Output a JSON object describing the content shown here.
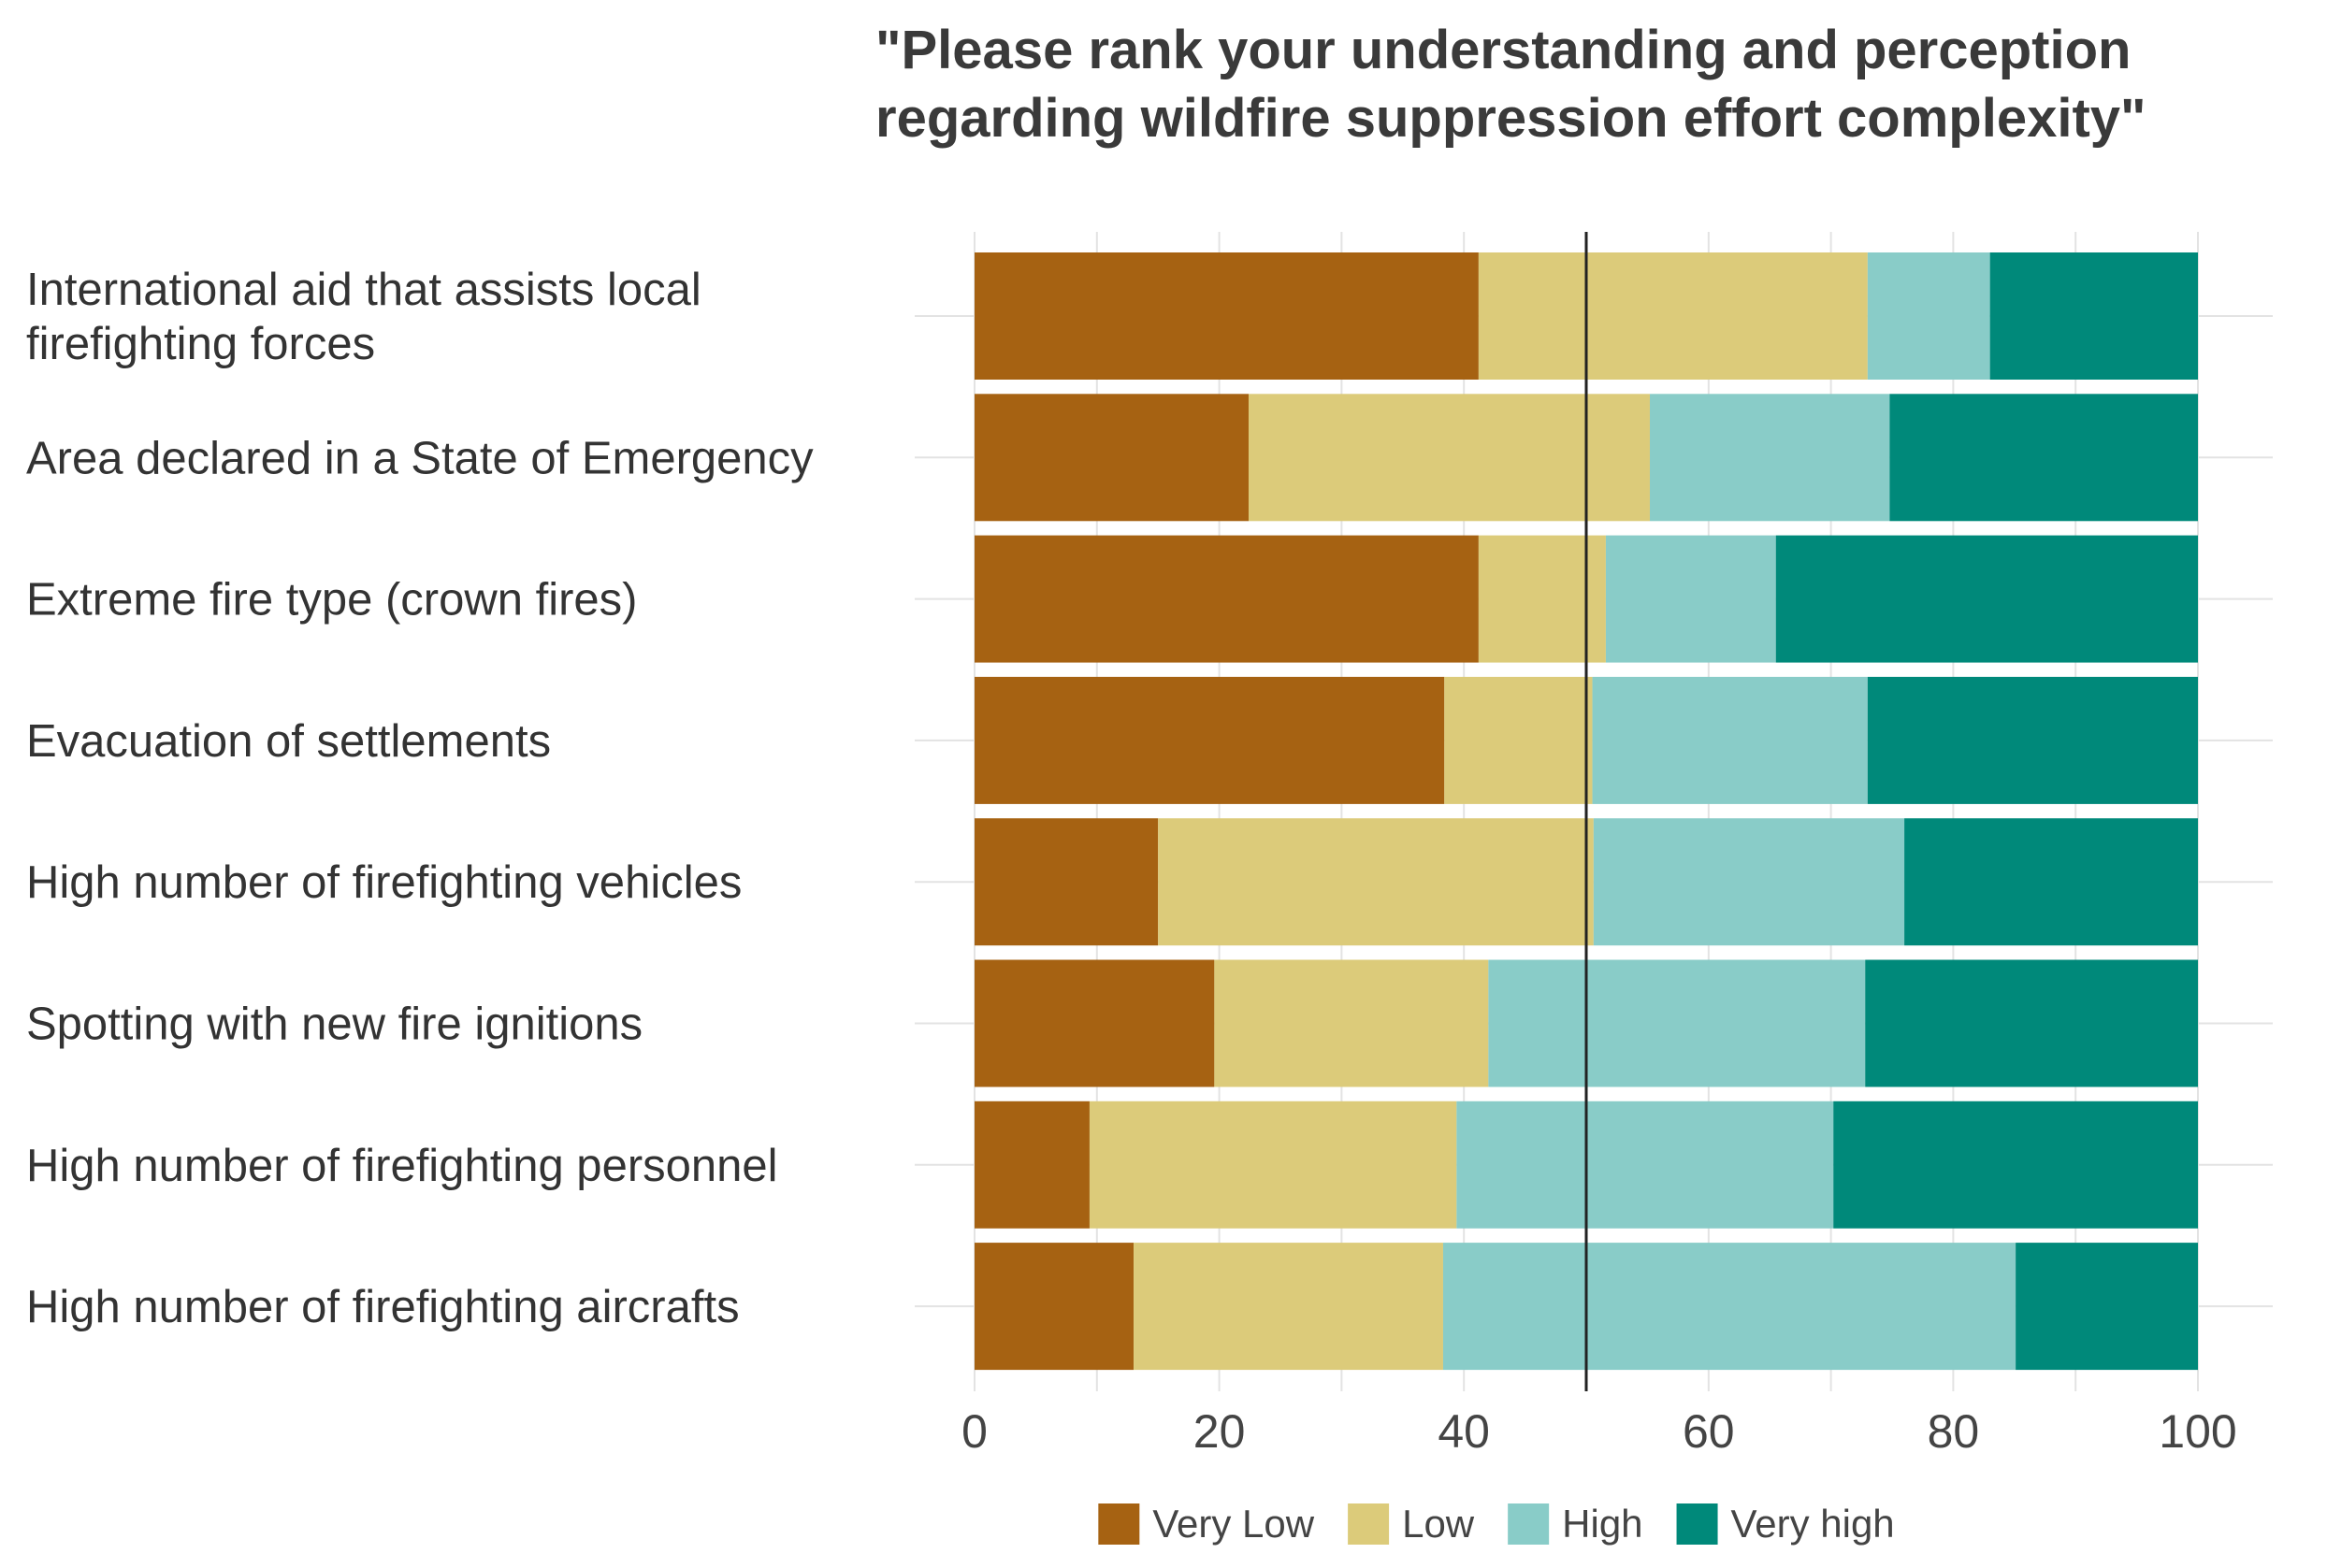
{
  "chart_data": {
    "type": "bar",
    "orientation": "horizontal",
    "stacked": true,
    "title": "\"Please rank your understanding and perception regarding wildfire suppression effort complexity\"",
    "title_lines": [
      "\"Please rank your understanding and perception",
      "regarding wildfire suppression effort complexity\""
    ],
    "xlabel": "",
    "ylabel": "",
    "xlim": [
      0,
      100
    ],
    "xticks": [
      0,
      20,
      40,
      60,
      80,
      100
    ],
    "reference_line_x": 50,
    "grid": true,
    "legend_position": "bottom",
    "categories": [
      "International aid that assists local firefighting forces",
      "Area declared in a State of Emergency",
      "Extreme fire type (crown fires)",
      "Evacuation of settlements",
      "High number of firefighting vehicles",
      "Spotting with new fire ignitions",
      "High number of firefighting personnel",
      "High number of firefighting aircrafts"
    ],
    "category_lines": [
      [
        "International aid that assists local",
        "firefighting forces"
      ],
      [
        "Area declared in a State of Emergency"
      ],
      [
        "Extreme fire type (crown fires)"
      ],
      [
        "Evacuation of settlements"
      ],
      [
        "High number of firefighting vehicles"
      ],
      [
        "Spotting with new fire ignitions"
      ],
      [
        "High number of firefighting personnel"
      ],
      [
        "High number of firefighting aircrafts"
      ]
    ],
    "series": [
      {
        "name": "Very Low",
        "color": "#a66212",
        "values": [
          41.2,
          22.4,
          41.2,
          38.4,
          15.0,
          19.6,
          9.4,
          13.0
        ]
      },
      {
        "name": "Low",
        "color": "#dccb7a",
        "values": [
          31.8,
          32.8,
          10.4,
          12.1,
          35.6,
          22.4,
          30.0,
          25.3
        ]
      },
      {
        "name": "High",
        "color": "#89ccc8",
        "values": [
          10.0,
          19.6,
          13.9,
          22.5,
          25.4,
          30.8,
          30.8,
          46.8
        ]
      },
      {
        "name": "Very high",
        "color": "#00897a",
        "values": [
          17.0,
          25.2,
          34.5,
          27.0,
          24.0,
          27.2,
          29.8,
          14.9
        ]
      }
    ]
  }
}
